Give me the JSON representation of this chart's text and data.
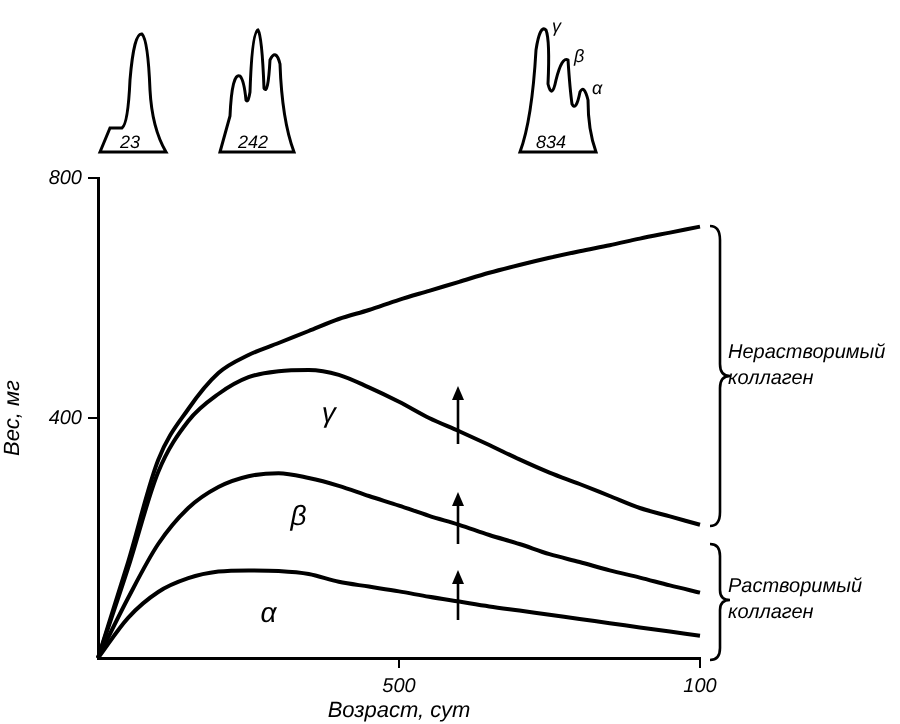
{
  "chart_data": {
    "type": "line",
    "xlabel": "Возраст, сут",
    "ylabel": "Вес, мг",
    "ylim": [
      0,
      800
    ],
    "yticks": [
      400,
      800
    ],
    "grid": false,
    "legend": false,
    "marker": "none",
    "line_style": "solid",
    "categories": [
      null,
      null,
      null,
      null,
      null,
      null,
      null,
      null,
      null,
      null,
      "500",
      null,
      null,
      null,
      null,
      null,
      null,
      null,
      null,
      null,
      "100"
    ],
    "series": [
      {
        "color": "#000000",
        "values": [
          0,
          160,
          330,
          415,
          475,
          505,
          525,
          545,
          565,
          580,
          597,
          612,
          627,
          642,
          655,
          667,
          678,
          688,
          699,
          709,
          719
        ]
      },
      {
        "name": "γ",
        "color": "#000000",
        "values": [
          0,
          150,
          310,
          395,
          440,
          468,
          478,
          480,
          472,
          451,
          427,
          400,
          378,
          355,
          331,
          309,
          290,
          270,
          250,
          236,
          222
        ]
      },
      {
        "name": "β",
        "color": "#000000",
        "values": [
          0,
          100,
          190,
          250,
          285,
          303,
          308,
          300,
          287,
          270,
          254,
          237,
          222,
          205,
          190,
          173,
          160,
          146,
          134,
          121,
          109
        ]
      },
      {
        "name": "α",
        "color": "#000000",
        "values": [
          0,
          67,
          110,
          133,
          144,
          146,
          145,
          140,
          127,
          119,
          111,
          102,
          94,
          86,
          79,
          72,
          65,
          58,
          51,
          44,
          37
        ]
      }
    ],
    "annotations": [
      "23",
      "242",
      "834",
      "γ",
      "β",
      "α",
      "Нерастворимый коллаген",
      "Растворимый коллаген"
    ]
  }
}
